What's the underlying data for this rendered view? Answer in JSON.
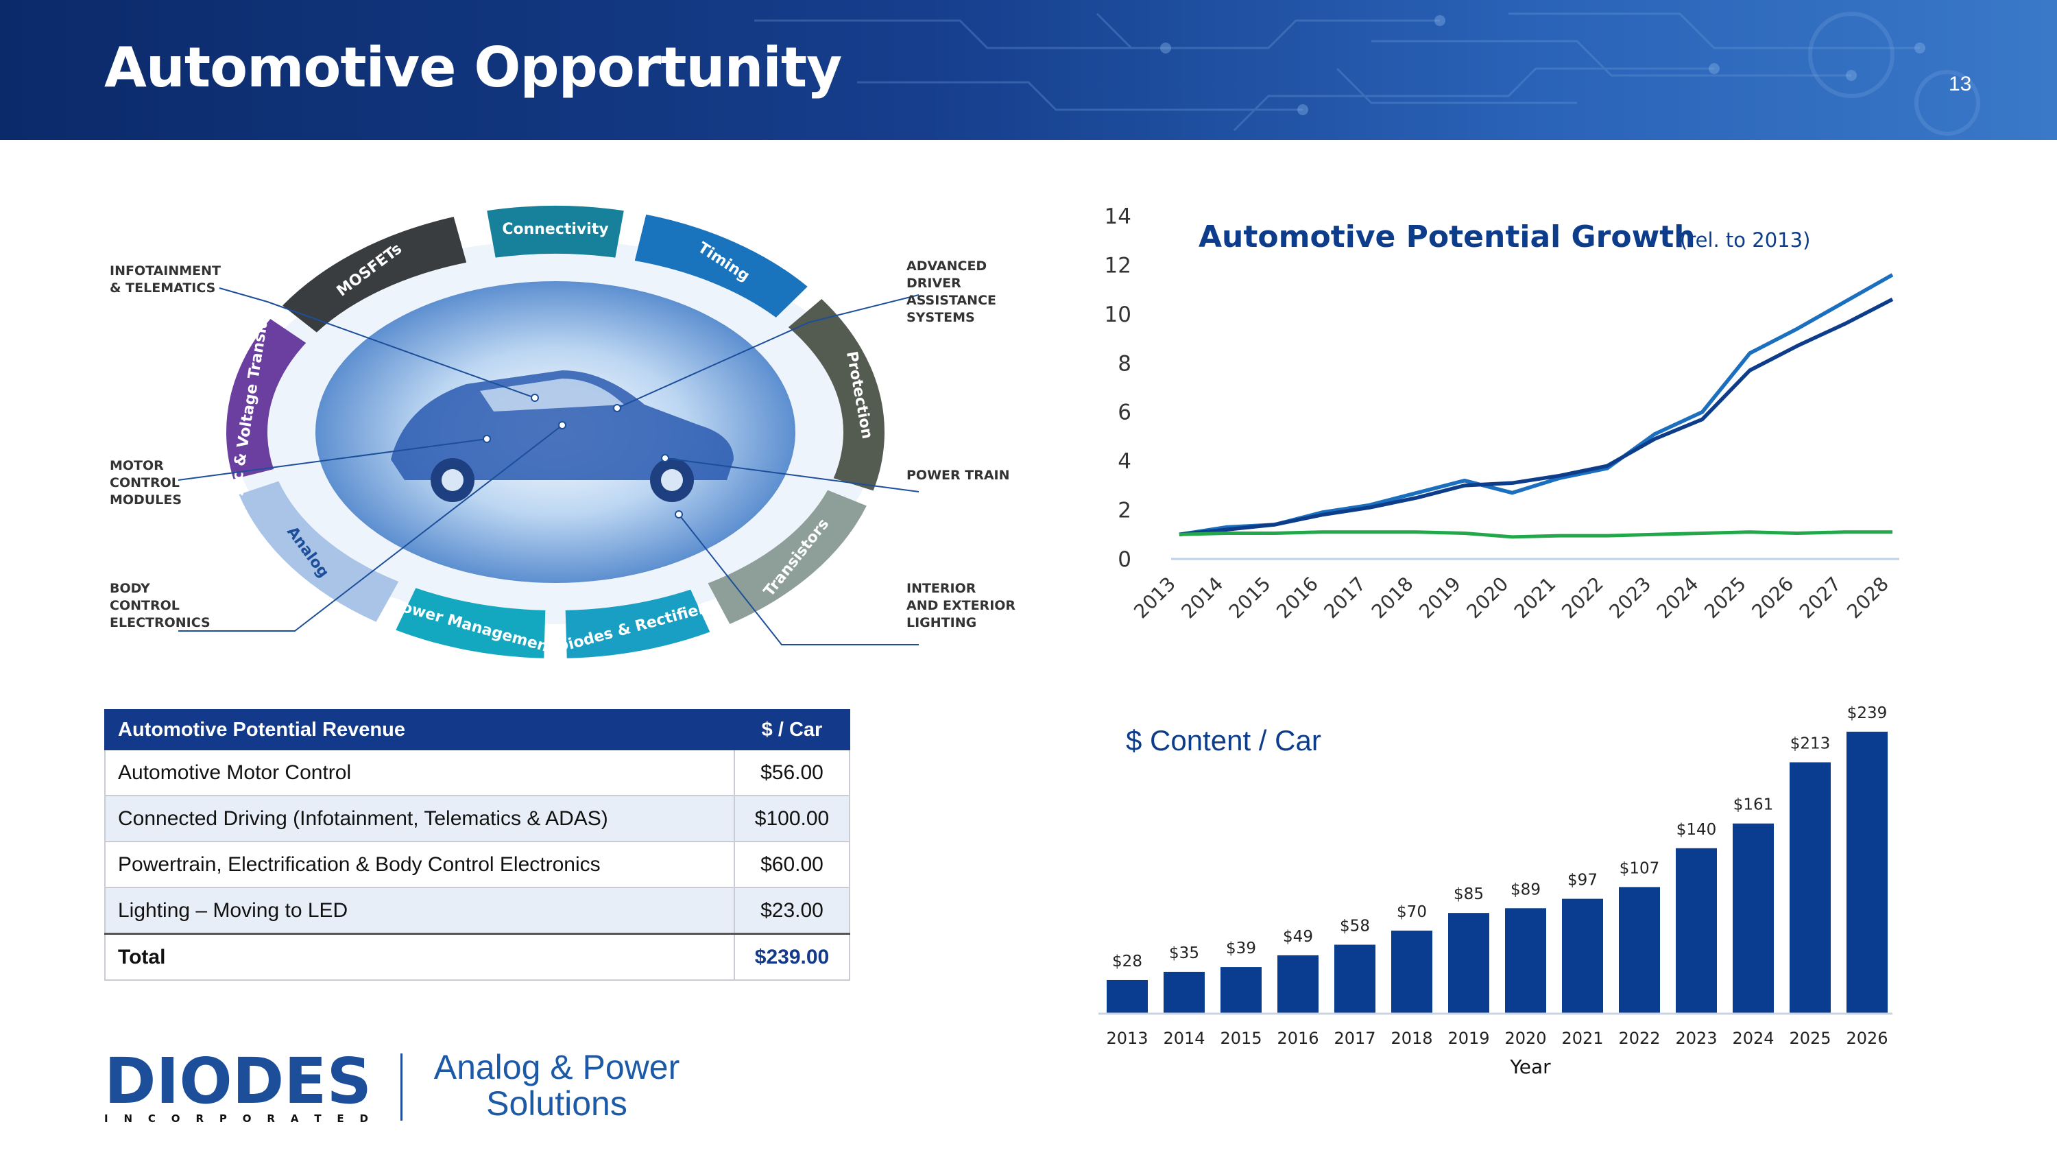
{
  "header": {
    "title": "Automotive Opportunity",
    "page_number": "13"
  },
  "diagram": {
    "segments": [
      "Connectivity",
      "Timing",
      "Protection",
      "Transistors",
      "Diodes & Rectifiers",
      "Power Management",
      "Analog",
      "Logic & Voltage Translation",
      "MOSFETs"
    ],
    "callouts": {
      "infotainment": "INFOTAINMENT\n& TELEMATICS",
      "motor": "MOTOR\nCONTROL\nMODULES",
      "body": "BODY\nCONTROL\nELECTRONICS",
      "adas": "ADVANCED\nDRIVER\nASSISTANCE\nSYSTEMS",
      "powertrain": "POWER TRAIN",
      "lighting": "INTERIOR\nAND EXTERIOR\nLIGHTING"
    },
    "colors": {
      "connectivity": "#17809a",
      "timing": "#1a73bd",
      "protection": "#545b50",
      "transistors": "#8e9e98",
      "diodes": "#1a9fc4",
      "power": "#13a8c0",
      "analog": "#aac4e8",
      "logic": "#6b3fa0",
      "mosfets": "#3a3d40"
    }
  },
  "revenue_table": {
    "header": {
      "name": "Automotive Potential Revenue",
      "value": "$ / Car"
    },
    "rows": [
      {
        "name": "Automotive Motor Control",
        "value": "$56.00"
      },
      {
        "name": "Connected Driving (Infotainment, Telematics & ADAS)",
        "value": "$100.00"
      },
      {
        "name": "Powertrain, Electrification & Body Control Electronics",
        "value": "$60.00"
      },
      {
        "name": "Lighting – Moving to LED",
        "value": "$23.00"
      }
    ],
    "total": {
      "name": "Total",
      "value": "$239.00"
    }
  },
  "logo": {
    "brand": "DIODES",
    "subtitle": "I N C O R P O R A T E D",
    "tagline_1": "Analog & Power",
    "tagline_2": "Solutions"
  },
  "chart_data": [
    {
      "type": "line",
      "title": "Automotive Potential Growth",
      "subtitle": "(rel. to 2013)",
      "x": [
        "2013",
        "2014",
        "2015",
        "2016",
        "2017",
        "2018",
        "2019",
        "2020",
        "2021",
        "2022",
        "2023",
        "2024",
        "2025",
        "2026",
        "2027",
        "2028"
      ],
      "ylim": [
        0,
        14
      ],
      "yticks": [
        0,
        2,
        4,
        6,
        8,
        10,
        12,
        14
      ],
      "series": [
        {
          "color": "#1a6fbf",
          "values": [
            1.0,
            1.3,
            1.4,
            1.9,
            2.2,
            2.7,
            3.2,
            2.7,
            3.3,
            3.7,
            5.1,
            6.0,
            8.4,
            9.4,
            10.5,
            11.6
          ]
        },
        {
          "color": "#0d3d8a",
          "values": [
            1.0,
            1.2,
            1.4,
            1.8,
            2.1,
            2.5,
            3.0,
            3.1,
            3.4,
            3.8,
            4.9,
            5.7,
            7.7,
            8.7,
            9.6,
            10.6
          ]
        },
        {
          "color": "#22a74a",
          "values": [
            1.0,
            1.05,
            1.05,
            1.1,
            1.1,
            1.1,
            1.05,
            0.9,
            0.95,
            0.95,
            1.0,
            1.05,
            1.1,
            1.05,
            1.1,
            1.1
          ]
        }
      ],
      "grid": false,
      "legend": "none"
    },
    {
      "type": "bar",
      "title": "$ Content / Car",
      "xlabel": "Year",
      "categories": [
        "2013",
        "2014",
        "2015",
        "2016",
        "2017",
        "2018",
        "2019",
        "2020",
        "2021",
        "2022",
        "2023",
        "2024",
        "2025",
        "2026"
      ],
      "values": [
        28,
        35,
        39,
        49,
        58,
        70,
        85,
        89,
        97,
        107,
        140,
        161,
        213,
        239
      ],
      "labels": [
        "$28",
        "$35",
        "$39",
        "$49",
        "$58",
        "$70",
        "$85",
        "$89",
        "$97",
        "$107",
        "$140",
        "$161",
        "$213",
        "$239"
      ],
      "ylim": [
        0,
        250
      ],
      "bar_color": "#0a3d8f",
      "grid": false
    }
  ]
}
